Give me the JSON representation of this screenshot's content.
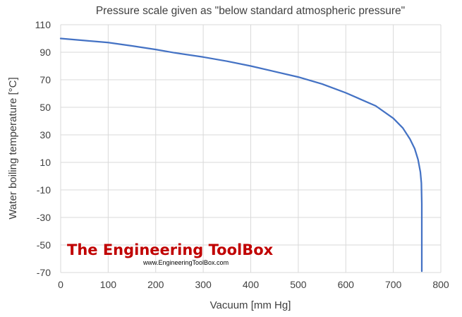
{
  "chart_data": {
    "type": "line",
    "title": "Pressure scale given as \"below standard atmospheric pressure\"",
    "xlabel": "Vacuum [mm Hg]",
    "ylabel": "Water boiling temperature [°C]",
    "xlim": [
      0,
      800
    ],
    "ylim": [
      -70,
      110
    ],
    "x_ticks": [
      "0",
      "100",
      "200",
      "300",
      "400",
      "500",
      "600",
      "700",
      "800"
    ],
    "y_ticks": [
      "110",
      "90",
      "70",
      "50",
      "30",
      "10",
      "-10",
      "-30",
      "-50",
      "-70"
    ],
    "grid": true,
    "legend": "none",
    "series": [
      {
        "color": "#4472c4",
        "points": [
          [
            0,
            100
          ],
          [
            50,
            98.5
          ],
          [
            100,
            97
          ],
          [
            150,
            94.6
          ],
          [
            200,
            92
          ],
          [
            240,
            89.6
          ],
          [
            300,
            86.5
          ],
          [
            350,
            83.5
          ],
          [
            400,
            80
          ],
          [
            450,
            76
          ],
          [
            500,
            72
          ],
          [
            550,
            67
          ],
          [
            600,
            60.5
          ],
          [
            663,
            51
          ],
          [
            700,
            42
          ],
          [
            720,
            35
          ],
          [
            735,
            27
          ],
          [
            745,
            20
          ],
          [
            752,
            12
          ],
          [
            757,
            3
          ],
          [
            759,
            -5
          ],
          [
            760,
            -20
          ],
          [
            760,
            -40
          ],
          [
            760,
            -69
          ]
        ]
      }
    ]
  },
  "watermark": {
    "brand": "The Engineering ToolBox",
    "url": "www.EngineeringToolBox.com"
  }
}
